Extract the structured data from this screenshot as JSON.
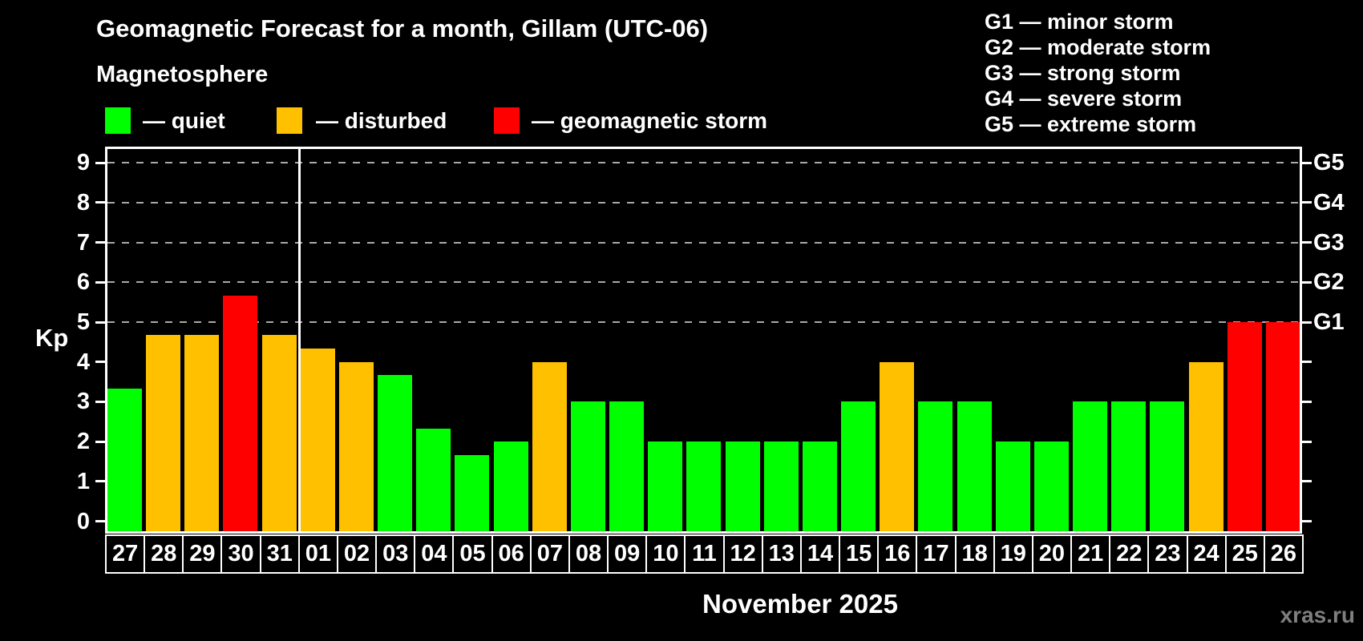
{
  "title": "Geomagnetic Forecast for a month, Gillam (UTC-06)",
  "subtitle": "Magnetosphere",
  "legend": {
    "items": [
      {
        "key": "quiet",
        "label": "— quiet",
        "color": "#00ff00"
      },
      {
        "key": "disturbed",
        "label": "— disturbed",
        "color": "#ffc000"
      },
      {
        "key": "storm",
        "label": "— geomagnetic storm",
        "color": "#ff0000"
      }
    ]
  },
  "storm_scale_legend": [
    "G1 — minor storm",
    "G2 — moderate storm",
    "G3 — strong storm",
    "G4 — severe storm",
    "G5 — extreme storm"
  ],
  "yaxis_title": "Kp",
  "xaxis_title": "November 2025",
  "watermark": "xras.ru",
  "chart_data": {
    "type": "bar",
    "title": "Geomagnetic Forecast for a month, Gillam (UTC-06)",
    "subtitle": "Magnetosphere",
    "categories": [
      "27",
      "28",
      "29",
      "30",
      "31",
      "01",
      "02",
      "03",
      "04",
      "05",
      "06",
      "07",
      "08",
      "09",
      "10",
      "11",
      "12",
      "13",
      "14",
      "15",
      "16",
      "17",
      "18",
      "19",
      "20",
      "21",
      "22",
      "23",
      "24",
      "25",
      "26"
    ],
    "values": [
      3.33,
      4.67,
      4.67,
      5.67,
      4.67,
      4.33,
      4.0,
      3.67,
      2.33,
      1.67,
      2.0,
      4.0,
      3.0,
      3.0,
      2.0,
      2.0,
      2.0,
      2.0,
      2.0,
      3.0,
      4.0,
      3.0,
      3.0,
      2.0,
      2.0,
      3.0,
      3.0,
      3.0,
      4.0,
      5.0,
      5.0
    ],
    "statuses": [
      "quiet",
      "disturbed",
      "disturbed",
      "storm",
      "disturbed",
      "disturbed",
      "disturbed",
      "quiet",
      "quiet",
      "quiet",
      "quiet",
      "disturbed",
      "quiet",
      "quiet",
      "quiet",
      "quiet",
      "quiet",
      "quiet",
      "quiet",
      "quiet",
      "disturbed",
      "quiet",
      "quiet",
      "quiet",
      "quiet",
      "quiet",
      "quiet",
      "quiet",
      "disturbed",
      "storm",
      "storm"
    ],
    "status_colors": {
      "quiet": "#00ff00",
      "disturbed": "#ffc000",
      "storm": "#ff0000"
    },
    "xlabel": "November 2025",
    "ylabel": "Kp",
    "ylim": [
      -0.3,
      9.4
    ],
    "yticks": [
      0,
      1,
      2,
      3,
      4,
      5,
      6,
      7,
      8,
      9
    ],
    "gridlines_at_kp": [
      5,
      6,
      7,
      8,
      9
    ],
    "grid_style": "dashed gray horizontal",
    "right_axis": [
      {
        "kp": 5,
        "label": "G1"
      },
      {
        "kp": 6,
        "label": "G2"
      },
      {
        "kp": 7,
        "label": "G3"
      },
      {
        "kp": 8,
        "label": "G4"
      },
      {
        "kp": 9,
        "label": "G5"
      }
    ],
    "month_separator_after_index": 4,
    "legend_position": "top-left",
    "background_color": "#000000",
    "text_color": "#ffffff"
  }
}
